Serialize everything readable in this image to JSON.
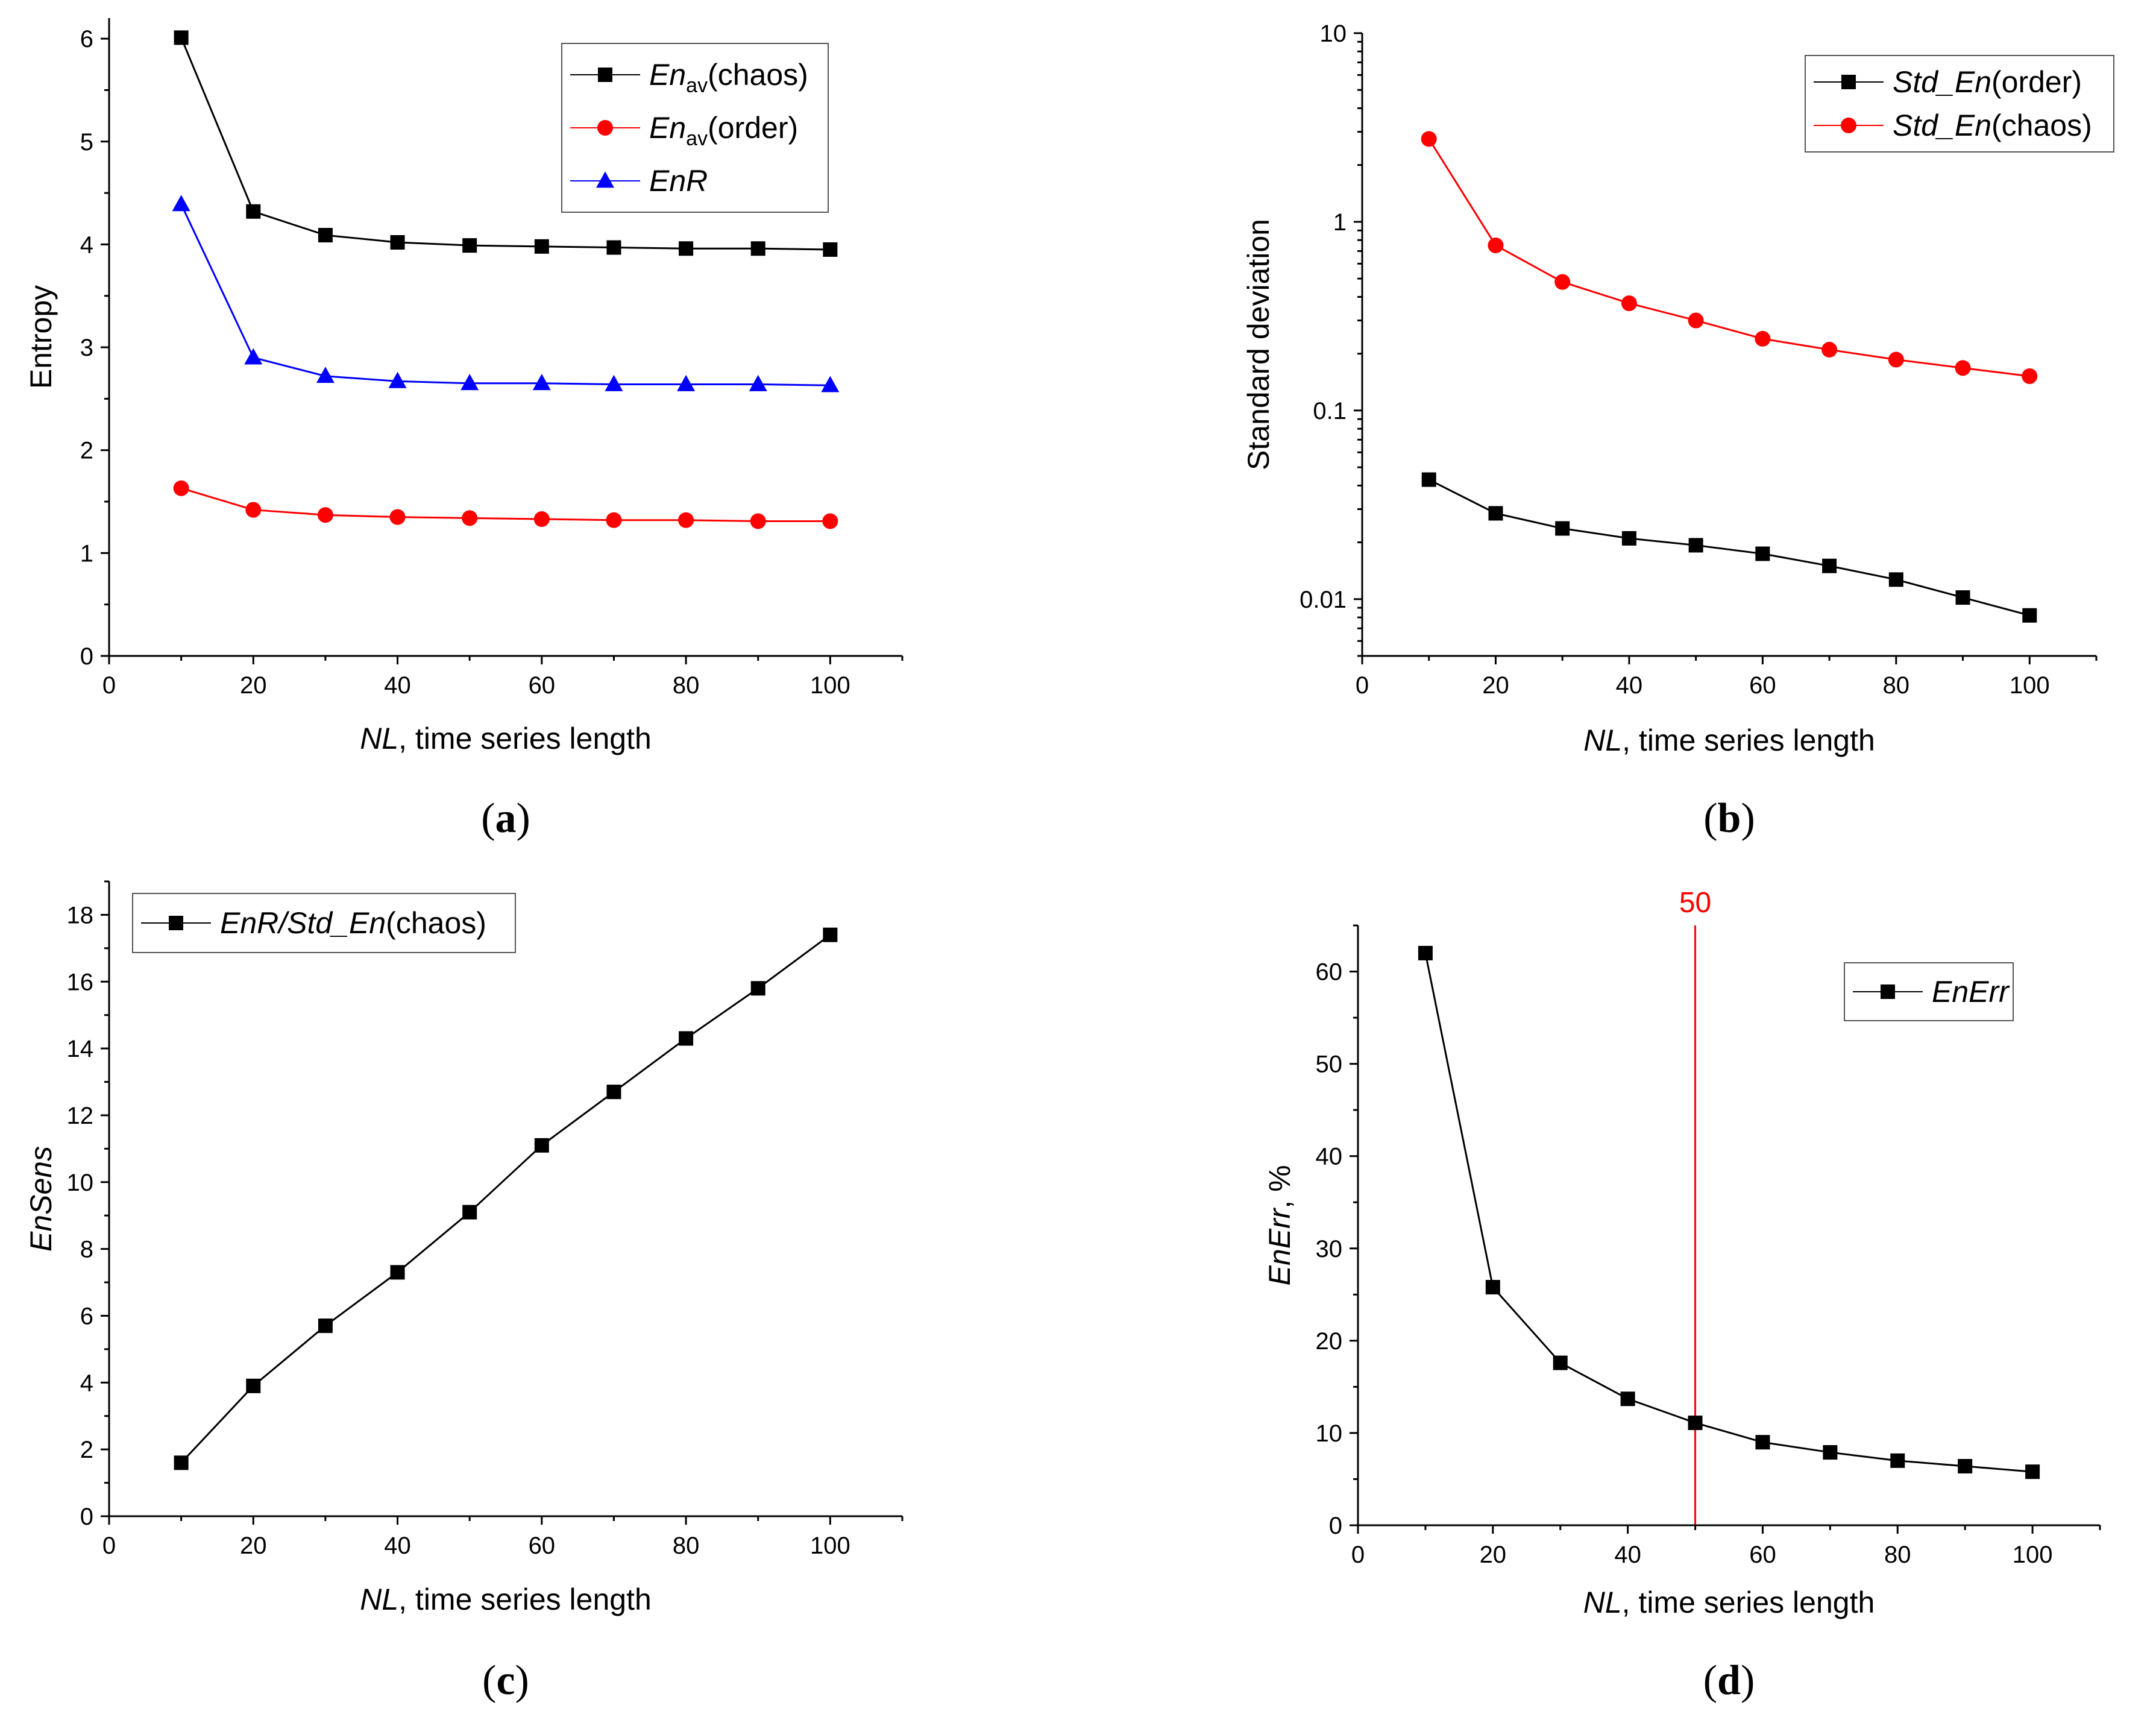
{
  "chart_data": [
    {
      "id": "a",
      "type": "line",
      "panel_label_prefix": "(",
      "panel_label_letter": "a",
      "panel_label_suffix": ")",
      "xlabel_italic": "NL",
      "xlabel_rest": ", time series length",
      "ylabel": "Entropy",
      "ylabel_italic": false,
      "xlim": [
        0,
        110
      ],
      "ylim": [
        0,
        6.2
      ],
      "xticks": [
        "0",
        "20",
        "40",
        "60",
        "80",
        "100"
      ],
      "yticks": [
        "0",
        "1",
        "2",
        "3",
        "4",
        "5",
        "6"
      ],
      "x": [
        10,
        20,
        30,
        40,
        50,
        60,
        70,
        80,
        90,
        100
      ],
      "series": [
        {
          "name_main": "En",
          "name_sub": "av",
          "name_rest": "(chaos)",
          "color": "#000000",
          "marker": "square",
          "values": [
            6.01,
            4.32,
            4.09,
            4.02,
            3.99,
            3.98,
            3.97,
            3.96,
            3.96,
            3.95
          ]
        },
        {
          "name_main": "En",
          "name_sub": "av",
          "name_rest": "(order)",
          "color": "#ff0000",
          "marker": "circle",
          "values": [
            1.63,
            1.42,
            1.37,
            1.35,
            1.34,
            1.33,
            1.32,
            1.32,
            1.31,
            1.31
          ]
        },
        {
          "name_main": "EnR",
          "name_sub": "",
          "name_rest": "",
          "color": "#0000ff",
          "marker": "triangle",
          "values": [
            4.39,
            2.9,
            2.72,
            2.67,
            2.65,
            2.65,
            2.64,
            2.64,
            2.64,
            2.63
          ]
        }
      ],
      "legend": "top-right"
    },
    {
      "id": "b",
      "type": "line",
      "yscale": "log",
      "panel_label_prefix": "(",
      "panel_label_letter": "b",
      "panel_label_suffix": ")",
      "xlabel_italic": "NL",
      "xlabel_rest": ", time series length",
      "ylabel": "Standard deviation",
      "ylabel_italic": false,
      "xlim": [
        0,
        110
      ],
      "ylim": [
        0.005,
        10
      ],
      "xticks": [
        "0",
        "20",
        "40",
        "60",
        "80",
        "100"
      ],
      "yticks": [
        "0.01",
        "0.1",
        "1",
        "10"
      ],
      "x": [
        10,
        20,
        30,
        40,
        50,
        60,
        70,
        80,
        90,
        100
      ],
      "series": [
        {
          "name_main": "Std_En",
          "name_sub": "",
          "name_rest": "(order)",
          "color": "#000000",
          "marker": "square",
          "values": [
            0.043,
            0.0285,
            0.0237,
            0.021,
            0.0193,
            0.0174,
            0.015,
            0.0127,
            0.0102,
            0.0082
          ]
        },
        {
          "name_main": "Std_En",
          "name_sub": "",
          "name_rest": "(chaos)",
          "color": "#ff0000",
          "marker": "circle",
          "values": [
            2.75,
            0.75,
            0.48,
            0.37,
            0.3,
            0.24,
            0.21,
            0.186,
            0.168,
            0.152
          ]
        }
      ],
      "legend": "top-right"
    },
    {
      "id": "c",
      "type": "line",
      "panel_label_prefix": "(",
      "panel_label_letter": "c",
      "panel_label_suffix": ")",
      "xlabel_italic": "NL",
      "xlabel_rest": ", time series length",
      "ylabel": "EnSens",
      "ylabel_italic": true,
      "xlim": [
        0,
        110
      ],
      "ylim": [
        0,
        19
      ],
      "xticks": [
        "0",
        "20",
        "40",
        "60",
        "80",
        "100"
      ],
      "yticks": [
        "0",
        "2",
        "4",
        "6",
        "8",
        "10",
        "12",
        "14",
        "16",
        "18"
      ],
      "x": [
        10,
        20,
        30,
        40,
        50,
        60,
        70,
        80,
        90,
        100
      ],
      "series": [
        {
          "name_main": "EnR/Std_En",
          "name_sub": "",
          "name_rest": "(chaos)",
          "color": "#000000",
          "marker": "square",
          "values": [
            1.6,
            3.9,
            5.7,
            7.3,
            9.1,
            11.1,
            12.7,
            14.3,
            15.8,
            17.4
          ]
        }
      ],
      "legend": "top-left"
    },
    {
      "id": "d",
      "type": "line",
      "panel_label_prefix": "(",
      "panel_label_letter": "d",
      "panel_label_suffix": ")",
      "xlabel_italic": "NL",
      "xlabel_rest": ", time series length",
      "ylabel": "EnErr",
      "ylabel_rest": ", %",
      "ylabel_italic": true,
      "xlim": [
        0,
        110
      ],
      "ylim": [
        0,
        65
      ],
      "xticks": [
        "0",
        "20",
        "40",
        "60",
        "80",
        "100"
      ],
      "yticks": [
        "0",
        "10",
        "20",
        "30",
        "40",
        "50",
        "60"
      ],
      "x": [
        10,
        20,
        30,
        40,
        50,
        60,
        70,
        80,
        90,
        100
      ],
      "series": [
        {
          "name_main": "EnErr",
          "name_sub": "",
          "name_rest": "",
          "color": "#000000",
          "marker": "square",
          "values": [
            62.0,
            25.8,
            17.6,
            13.7,
            11.1,
            9.0,
            7.9,
            7.0,
            6.4,
            5.8
          ]
        }
      ],
      "reference_line": {
        "x": 50,
        "label": "50",
        "color": "#ff0000"
      },
      "legend": "top-right"
    }
  ]
}
